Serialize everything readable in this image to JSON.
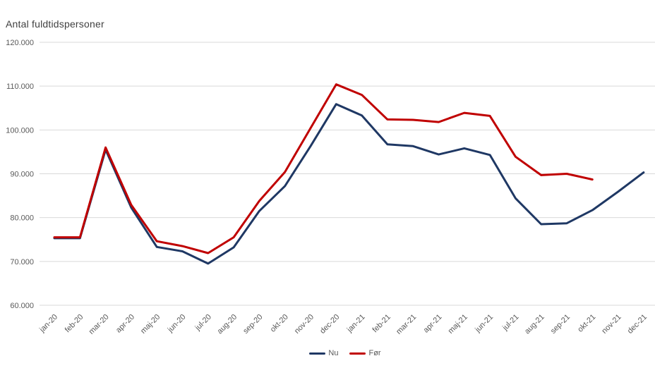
{
  "chart_data": {
    "type": "line",
    "title": "Antal fuldtidspersoner",
    "categories": [
      "jan-20",
      "feb-20",
      "mar-20",
      "apr-20",
      "maj-20",
      "jun-20",
      "jul-20",
      "aug-20",
      "sep-20",
      "okt-20",
      "nov-20",
      "dec-20",
      "jan-21",
      "feb-21",
      "mar-21",
      "apr-21",
      "maj-21",
      "jun-21",
      "jul-21",
      "aug-21",
      "sep-21",
      "okt-21",
      "nov-21",
      "dec-21"
    ],
    "series": [
      {
        "name": "Nu",
        "color": "#1F3864",
        "values": [
          75300,
          75300,
          95500,
          82300,
          73300,
          72300,
          69500,
          73200,
          81500,
          87200,
          96300,
          105900,
          103300,
          96700,
          96300,
          94400,
          95800,
          94300,
          84400,
          78500,
          78700,
          81700,
          85900,
          90300
        ]
      },
      {
        "name": "Før",
        "color": "#C00000",
        "values": [
          75500,
          75500,
          96000,
          82900,
          74600,
          73500,
          71900,
          75500,
          83800,
          90400,
          100400,
          110400,
          108000,
          102400,
          102300,
          101800,
          103900,
          103200,
          93900,
          89700,
          90000,
          88700,
          null,
          null
        ]
      }
    ],
    "y_axis": {
      "min": 60000,
      "max": 120000,
      "step": 10000,
      "tick_labels": [
        "60.000",
        "70.000",
        "80.000",
        "90.000",
        "100.000",
        "110.000",
        "120.000"
      ]
    },
    "xlabel": "",
    "ylabel": "",
    "grid": true,
    "legend_position": "bottom-center",
    "colors": {
      "background": "#FFFFFF",
      "gridline": "#D9D9D9",
      "axis_label": "#595959",
      "title": "#404040"
    }
  }
}
